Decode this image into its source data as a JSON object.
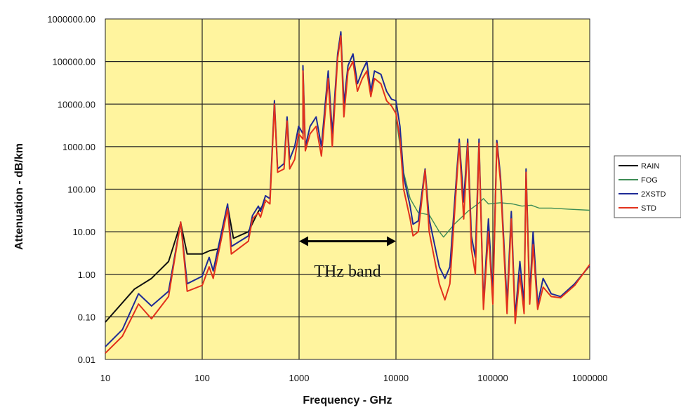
{
  "chart_data": {
    "type": "line",
    "title": "",
    "xlabel": "Frequency - GHz",
    "ylabel": "Attenuation - dB/km",
    "xscale": "log",
    "yscale": "log",
    "xlim": [
      10,
      1000000
    ],
    "ylim": [
      0.01,
      1000000
    ],
    "grid": true,
    "legend_position": "right",
    "x_tick_labels": [
      "10",
      "100",
      "1000",
      "10000",
      "100000",
      "1000000"
    ],
    "y_tick_labels": [
      "0.01",
      "0.10",
      "1.00",
      "10.00",
      "100.00",
      "1000.00",
      "10000.00",
      "100000.00",
      "1000000.00"
    ],
    "annotation": {
      "text": "THz band",
      "x_from": 1000,
      "x_to": 10000,
      "y": 6
    },
    "colors": {
      "plot_background": "#FFF49E",
      "RAIN": "#111111",
      "FOG": "#3D8C55",
      "2XSTD": "#1E2A96",
      "STD": "#E2311C",
      "grid": "#222222",
      "annotation": "#000000"
    },
    "series": [
      {
        "name": "RAIN",
        "points": [
          [
            10,
            0.075
          ],
          [
            20,
            0.45
          ],
          [
            30,
            0.8
          ],
          [
            45,
            2
          ],
          [
            60,
            16
          ],
          [
            70,
            3
          ],
          [
            100,
            3
          ],
          [
            120,
            3.6
          ],
          [
            150,
            4
          ],
          [
            183,
            40
          ],
          [
            210,
            7
          ],
          [
            300,
            10
          ],
          [
            380,
            30
          ],
          [
            450,
            50
          ]
        ]
      },
      {
        "name": "FOG",
        "points": [
          [
            10000,
            5000
          ],
          [
            12000,
            250
          ],
          [
            14000,
            60
          ],
          [
            17000,
            28
          ],
          [
            22000,
            25
          ],
          [
            28000,
            10
          ],
          [
            31000,
            7.5
          ],
          [
            40000,
            15
          ],
          [
            55000,
            30
          ],
          [
            70000,
            45
          ],
          [
            80000,
            60
          ],
          [
            90000,
            45
          ],
          [
            120000,
            48
          ],
          [
            160000,
            45
          ],
          [
            200000,
            40
          ],
          [
            250000,
            42
          ],
          [
            300000,
            36
          ],
          [
            400000,
            36
          ],
          [
            600000,
            34
          ],
          [
            1000000,
            32
          ]
        ]
      },
      {
        "name": "2XSTD",
        "points": [
          [
            10,
            0.02
          ],
          [
            15,
            0.05
          ],
          [
            22,
            0.35
          ],
          [
            30,
            0.18
          ],
          [
            45,
            0.4
          ],
          [
            60,
            17
          ],
          [
            70,
            0.6
          ],
          [
            100,
            0.9
          ],
          [
            118,
            2.5
          ],
          [
            130,
            1.2
          ],
          [
            183,
            45
          ],
          [
            200,
            4.5
          ],
          [
            300,
            8
          ],
          [
            330,
            24
          ],
          [
            380,
            40
          ],
          [
            400,
            30
          ],
          [
            450,
            70
          ],
          [
            500,
            60
          ],
          [
            557,
            12000
          ],
          [
            600,
            300
          ],
          [
            700,
            400
          ],
          [
            752,
            5000
          ],
          [
            800,
            500
          ],
          [
            900,
            1000
          ],
          [
            988,
            3000
          ],
          [
            1100,
            2000
          ],
          [
            1097,
            80000
          ],
          [
            1160,
            1000
          ],
          [
            1300,
            3000
          ],
          [
            1500,
            5000
          ],
          [
            1700,
            1000
          ],
          [
            2000,
            60000
          ],
          [
            2200,
            2000
          ],
          [
            2500,
            150000
          ],
          [
            2700,
            500000
          ],
          [
            2900,
            10000
          ],
          [
            3200,
            80000
          ],
          [
            3600,
            150000
          ],
          [
            4000,
            30000
          ],
          [
            4500,
            60000
          ],
          [
            5000,
            100000
          ],
          [
            5500,
            20000
          ],
          [
            6000,
            60000
          ],
          [
            7000,
            50000
          ],
          [
            8000,
            20000
          ],
          [
            9000,
            13000
          ],
          [
            10000,
            12000
          ],
          [
            11000,
            3000
          ],
          [
            12000,
            200
          ],
          [
            14000,
            40
          ],
          [
            15000,
            15
          ],
          [
            17000,
            18
          ],
          [
            20000,
            300
          ],
          [
            22000,
            20
          ],
          [
            28000,
            1.5
          ],
          [
            32000,
            0.8
          ],
          [
            36000,
            1.5
          ],
          [
            45000,
            1500
          ],
          [
            50000,
            50
          ],
          [
            55000,
            1500
          ],
          [
            60000,
            8
          ],
          [
            66000,
            2.5
          ],
          [
            72000,
            1500
          ],
          [
            80000,
            0.2
          ],
          [
            90000,
            20
          ],
          [
            100000,
            0.3
          ],
          [
            110000,
            1400
          ],
          [
            120000,
            200
          ],
          [
            140000,
            0.2
          ],
          [
            155000,
            30
          ],
          [
            170000,
            0.1
          ],
          [
            190000,
            2
          ],
          [
            210000,
            0.2
          ],
          [
            220000,
            300
          ],
          [
            240000,
            0.3
          ],
          [
            260000,
            10
          ],
          [
            290000,
            0.2
          ],
          [
            330000,
            0.8
          ],
          [
            400000,
            0.35
          ],
          [
            500000,
            0.3
          ],
          [
            700000,
            0.6
          ],
          [
            1000000,
            1.6
          ]
        ]
      },
      {
        "name": "STD",
        "points": [
          [
            10,
            0.014
          ],
          [
            15,
            0.035
          ],
          [
            22,
            0.2
          ],
          [
            30,
            0.09
          ],
          [
            45,
            0.3
          ],
          [
            60,
            17
          ],
          [
            70,
            0.4
          ],
          [
            100,
            0.55
          ],
          [
            118,
            1.5
          ],
          [
            130,
            0.8
          ],
          [
            183,
            35
          ],
          [
            200,
            3
          ],
          [
            300,
            6
          ],
          [
            330,
            20
          ],
          [
            380,
            28
          ],
          [
            400,
            22
          ],
          [
            450,
            55
          ],
          [
            500,
            45
          ],
          [
            557,
            10000
          ],
          [
            600,
            250
          ],
          [
            700,
            300
          ],
          [
            752,
            4000
          ],
          [
            800,
            300
          ],
          [
            900,
            500
          ],
          [
            988,
            2000
          ],
          [
            1100,
            1500
          ],
          [
            1097,
            60000
          ],
          [
            1160,
            800
          ],
          [
            1300,
            2000
          ],
          [
            1500,
            3000
          ],
          [
            1700,
            600
          ],
          [
            2000,
            40000
          ],
          [
            2200,
            1000
          ],
          [
            2500,
            120000
          ],
          [
            2700,
            400000
          ],
          [
            2900,
            5000
          ],
          [
            3200,
            60000
          ],
          [
            3600,
            100000
          ],
          [
            4000,
            20000
          ],
          [
            4500,
            40000
          ],
          [
            5000,
            60000
          ],
          [
            5500,
            15000
          ],
          [
            6000,
            40000
          ],
          [
            7000,
            30000
          ],
          [
            8000,
            12000
          ],
          [
            9000,
            9000
          ],
          [
            10000,
            6000
          ],
          [
            11000,
            1500
          ],
          [
            12000,
            100
          ],
          [
            14000,
            20
          ],
          [
            15000,
            8
          ],
          [
            17000,
            10
          ],
          [
            20000,
            280
          ],
          [
            22000,
            10
          ],
          [
            28000,
            0.6
          ],
          [
            32000,
            0.25
          ],
          [
            36000,
            0.6
          ],
          [
            45000,
            1200
          ],
          [
            50000,
            20
          ],
          [
            55000,
            1200
          ],
          [
            60000,
            4
          ],
          [
            66000,
            1
          ],
          [
            72000,
            1200
          ],
          [
            80000,
            0.15
          ],
          [
            90000,
            10
          ],
          [
            100000,
            0.2
          ],
          [
            110000,
            1200
          ],
          [
            120000,
            150
          ],
          [
            140000,
            0.12
          ],
          [
            155000,
            20
          ],
          [
            170000,
            0.07
          ],
          [
            190000,
            1
          ],
          [
            210000,
            0.12
          ],
          [
            220000,
            250
          ],
          [
            240000,
            0.2
          ],
          [
            260000,
            5
          ],
          [
            290000,
            0.15
          ],
          [
            330000,
            0.5
          ],
          [
            400000,
            0.3
          ],
          [
            500000,
            0.28
          ],
          [
            700000,
            0.55
          ],
          [
            1000000,
            1.7
          ]
        ]
      }
    ]
  }
}
